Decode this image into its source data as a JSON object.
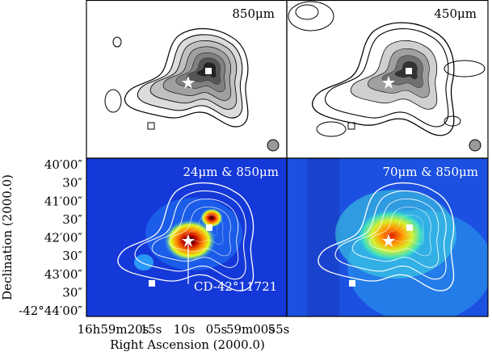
{
  "panels": [
    {
      "label": "850μm"
    },
    {
      "label": "450μm"
    },
    {
      "label": "24μm & 850μm"
    },
    {
      "label": "70μm & 850μm"
    }
  ],
  "annotation": "CD-42°11721",
  "y_axis": {
    "title": "Declination (2000.0)",
    "ticks": [
      "40′00″",
      "30″",
      "41′00″",
      "30″",
      "42′00″",
      "30″",
      "43′00″",
      "30″",
      "-42°44′00″"
    ]
  },
  "x_axis": {
    "title": "Right Ascension (2000.0)",
    "ticks": [
      "16h59m20s",
      "15s",
      "10s",
      "05s",
      "59m00s",
      "55s"
    ]
  }
}
